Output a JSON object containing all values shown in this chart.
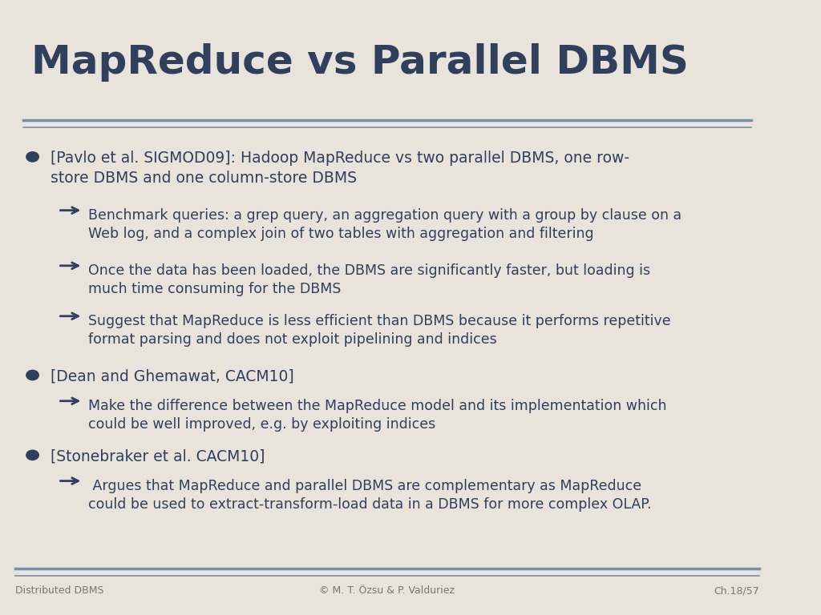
{
  "title": "MapReduce vs Parallel DBMS",
  "title_color": "#2F3F5C",
  "bg_color": "#E8E4DC",
  "text_color": "#2F3F5C",
  "line_color": "#7A8FA6",
  "footer_left": "Distributed DBMS",
  "footer_center": "© M. T. Özsu & P. Valduriez",
  "footer_right": "Ch.18/57",
  "bullet1": "[Pavlo et al. SIGMOD09]: Hadoop MapReduce vs two parallel DBMS, one row-\nstore DBMS and one column-store DBMS",
  "sub1a": "Benchmark queries: a grep query, an aggregation query with a group by clause on a\nWeb log, and a complex join of two tables with aggregation and filtering",
  "sub1b": "Once the data has been loaded, the DBMS are significantly faster, but loading is\nmuch time consuming for the DBMS",
  "sub1c": "Suggest that MapReduce is less efficient than DBMS because it performs repetitive\nformat parsing and does not exploit pipelining and indices",
  "bullet2": "[Dean and Ghemawat, CACM10]",
  "sub2a": "Make the difference between the MapReduce model and its implementation which\ncould be well improved, e.g. by exploiting indices",
  "bullet3": "[Stonebraker et al. CACM10]",
  "sub3a": " Argues that MapReduce and parallel DBMS are complementary as MapReduce\ncould be used to extract-transform-load data in a DBMS for more complex OLAP."
}
